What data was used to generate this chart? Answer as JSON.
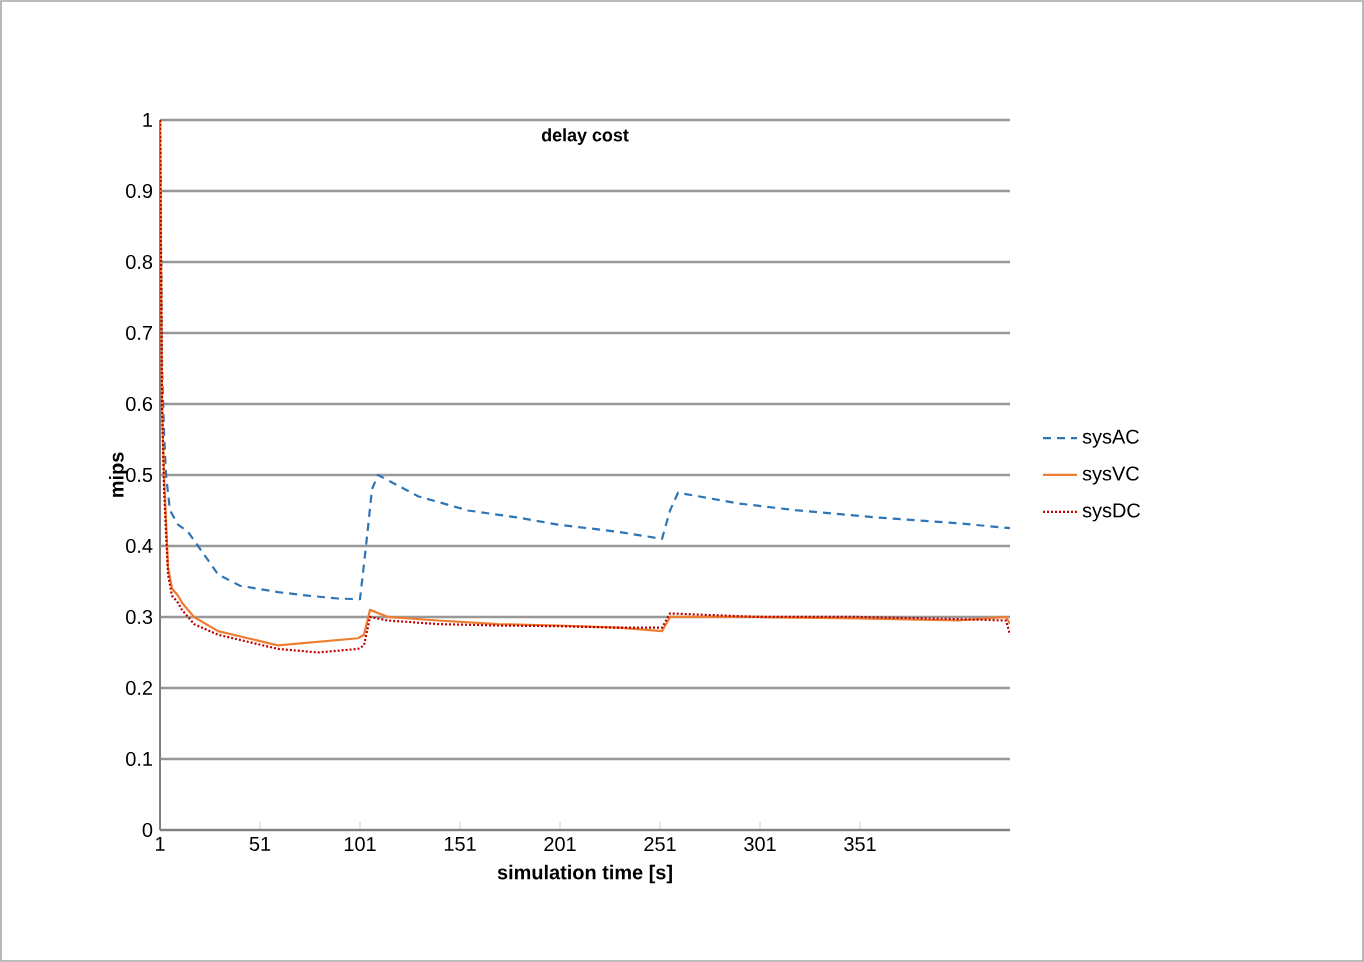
{
  "chart_data": {
    "type": "line",
    "title": "delay cost",
    "xlabel": "simulation  time [s]",
    "ylabel": "mips",
    "xlim": [
      1,
      426
    ],
    "xticks": [
      1,
      51,
      101,
      151,
      201,
      251,
      301,
      351
    ],
    "ylim": [
      0,
      1
    ],
    "yticks": [
      0,
      0.1,
      0.2,
      0.3,
      0.4,
      0.5,
      0.6,
      0.7,
      0.8,
      0.9,
      1
    ],
    "grid": "y",
    "legend": "right",
    "marker": "none",
    "series": [
      {
        "name": "sysAC",
        "color": "#2e75b6",
        "line_style": "dashed",
        "x": [
          1,
          2,
          3,
          4,
          6,
          10,
          15,
          20,
          30,
          41,
          60,
          75,
          90,
          101,
          104,
          107,
          110,
          130,
          155,
          180,
          200,
          230,
          252,
          256,
          260,
          290,
          320,
          360,
          400,
          426
        ],
        "values": [
          1,
          0.65,
          0.56,
          0.5,
          0.45,
          0.43,
          0.42,
          0.4,
          0.36,
          0.344,
          0.335,
          0.33,
          0.326,
          0.325,
          0.4,
          0.48,
          0.5,
          0.47,
          0.45,
          0.44,
          0.43,
          0.42,
          0.41,
          0.45,
          0.475,
          0.46,
          0.45,
          0.44,
          0.432,
          0.425
        ]
      },
      {
        "name": "sysVC",
        "color": "#ed7d31",
        "line_style": "solid",
        "x": [
          1,
          2,
          3,
          5,
          7,
          10,
          12,
          18,
          30,
          45,
          60,
          80,
          100,
          103,
          106,
          115,
          140,
          170,
          200,
          230,
          252,
          256,
          300,
          350,
          400,
          424,
          426
        ],
        "values": [
          1,
          0.6,
          0.5,
          0.37,
          0.34,
          0.33,
          0.32,
          0.3,
          0.28,
          0.27,
          0.26,
          0.265,
          0.27,
          0.275,
          0.31,
          0.3,
          0.295,
          0.29,
          0.288,
          0.285,
          0.28,
          0.3,
          0.3,
          0.298,
          0.295,
          0.3,
          0.29
        ]
      },
      {
        "name": "sysDC",
        "color": "#c00000",
        "line_style": "dotted",
        "x": [
          1,
          2,
          3,
          5,
          7,
          10,
          12,
          18,
          30,
          45,
          60,
          80,
          100,
          103,
          106,
          115,
          140,
          170,
          200,
          230,
          252,
          256,
          300,
          350,
          400,
          424,
          426
        ],
        "values": [
          1,
          0.6,
          0.48,
          0.36,
          0.33,
          0.32,
          0.31,
          0.29,
          0.275,
          0.265,
          0.255,
          0.25,
          0.255,
          0.26,
          0.3,
          0.295,
          0.29,
          0.288,
          0.287,
          0.285,
          0.285,
          0.305,
          0.3,
          0.3,
          0.297,
          0.295,
          0.275
        ]
      }
    ]
  }
}
